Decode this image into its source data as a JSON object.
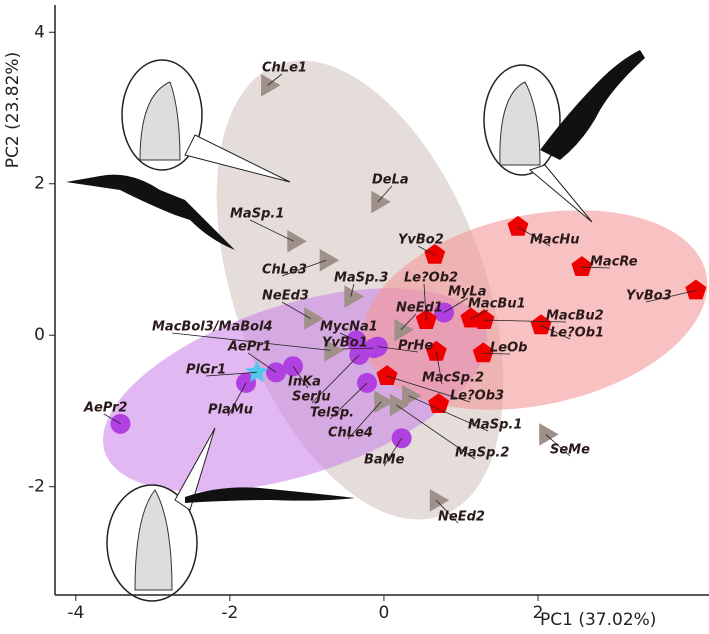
{
  "chart_data": {
    "type": "scatter",
    "x_label": "PC1 (37.02%)",
    "y_label": "PC2 (23.82%)",
    "xlim": [
      -4.27,
      4.22
    ],
    "ylim": [
      -3.43,
      4.36
    ],
    "xticks": [
      -4,
      -2,
      0,
      2
    ],
    "yticks": [
      -2,
      0,
      2,
      4
    ],
    "series": [
      {
        "marker": "triangle",
        "color": "#a0908a",
        "labels": [
          "ChLe1",
          "DeLa",
          "MaSp.1",
          "ChLe3",
          "MaSp.3",
          "NeEd3",
          "NeEd1",
          "MacBol3/MaBol4",
          "ChLe4",
          "MaSp.1",
          "MaSp.2",
          "SeMe",
          "NeEd2"
        ],
        "x": [
          -1.51,
          -0.08,
          -1.17,
          -0.75,
          -0.43,
          -0.95,
          0.22,
          -0.69,
          -0.04,
          0.32,
          0.16,
          2.1,
          0.68
        ],
        "values": [
          3.3,
          1.76,
          1.24,
          0.99,
          0.51,
          0.22,
          0.07,
          -0.2,
          -0.88,
          -0.8,
          -0.92,
          -1.31,
          -2.18
        ]
      },
      {
        "marker": "circle",
        "color": "#b040e0",
        "labels": [
          "AePr2",
          "PlaMu",
          "AePr1",
          "InKa",
          "MycNa1",
          "YvBo1",
          "SerJu",
          "TelSp.",
          "MyLa",
          "BaMe",
          "PrHe"
        ],
        "x": [
          -3.42,
          -1.79,
          -1.4,
          -1.18,
          -0.36,
          -0.13,
          -0.32,
          -0.22,
          0.78,
          0.23,
          -0.08
        ],
        "values": [
          -1.17,
          -0.63,
          -0.49,
          -0.41,
          -0.07,
          -0.17,
          -0.26,
          -0.63,
          0.3,
          -1.36,
          -0.15
        ]
      },
      {
        "marker": "pentagon",
        "color": "#ee0000",
        "labels": [
          "MacHu",
          "MacRe",
          "YvBo3",
          "YvBo2",
          "Le?Ob2",
          "MacBu1",
          "MacBu2",
          "Le?Ob1",
          "LeOb",
          "MacSp.2",
          "Le?Ob3",
          null
        ],
        "x": [
          1.74,
          2.57,
          4.05,
          0.66,
          0.55,
          1.13,
          1.3,
          2.04,
          1.29,
          0.68,
          0.04,
          0.71
        ],
        "values": [
          1.43,
          0.9,
          0.59,
          1.06,
          0.2,
          0.22,
          0.2,
          0.13,
          -0.24,
          -0.22,
          -0.54,
          -0.91
        ]
      },
      {
        "marker": "star",
        "color": "#4fc8f0",
        "labels": [
          "PlGr1"
        ],
        "x": [
          -1.65
        ],
        "values": [
          -0.49
        ]
      }
    ]
  }
}
